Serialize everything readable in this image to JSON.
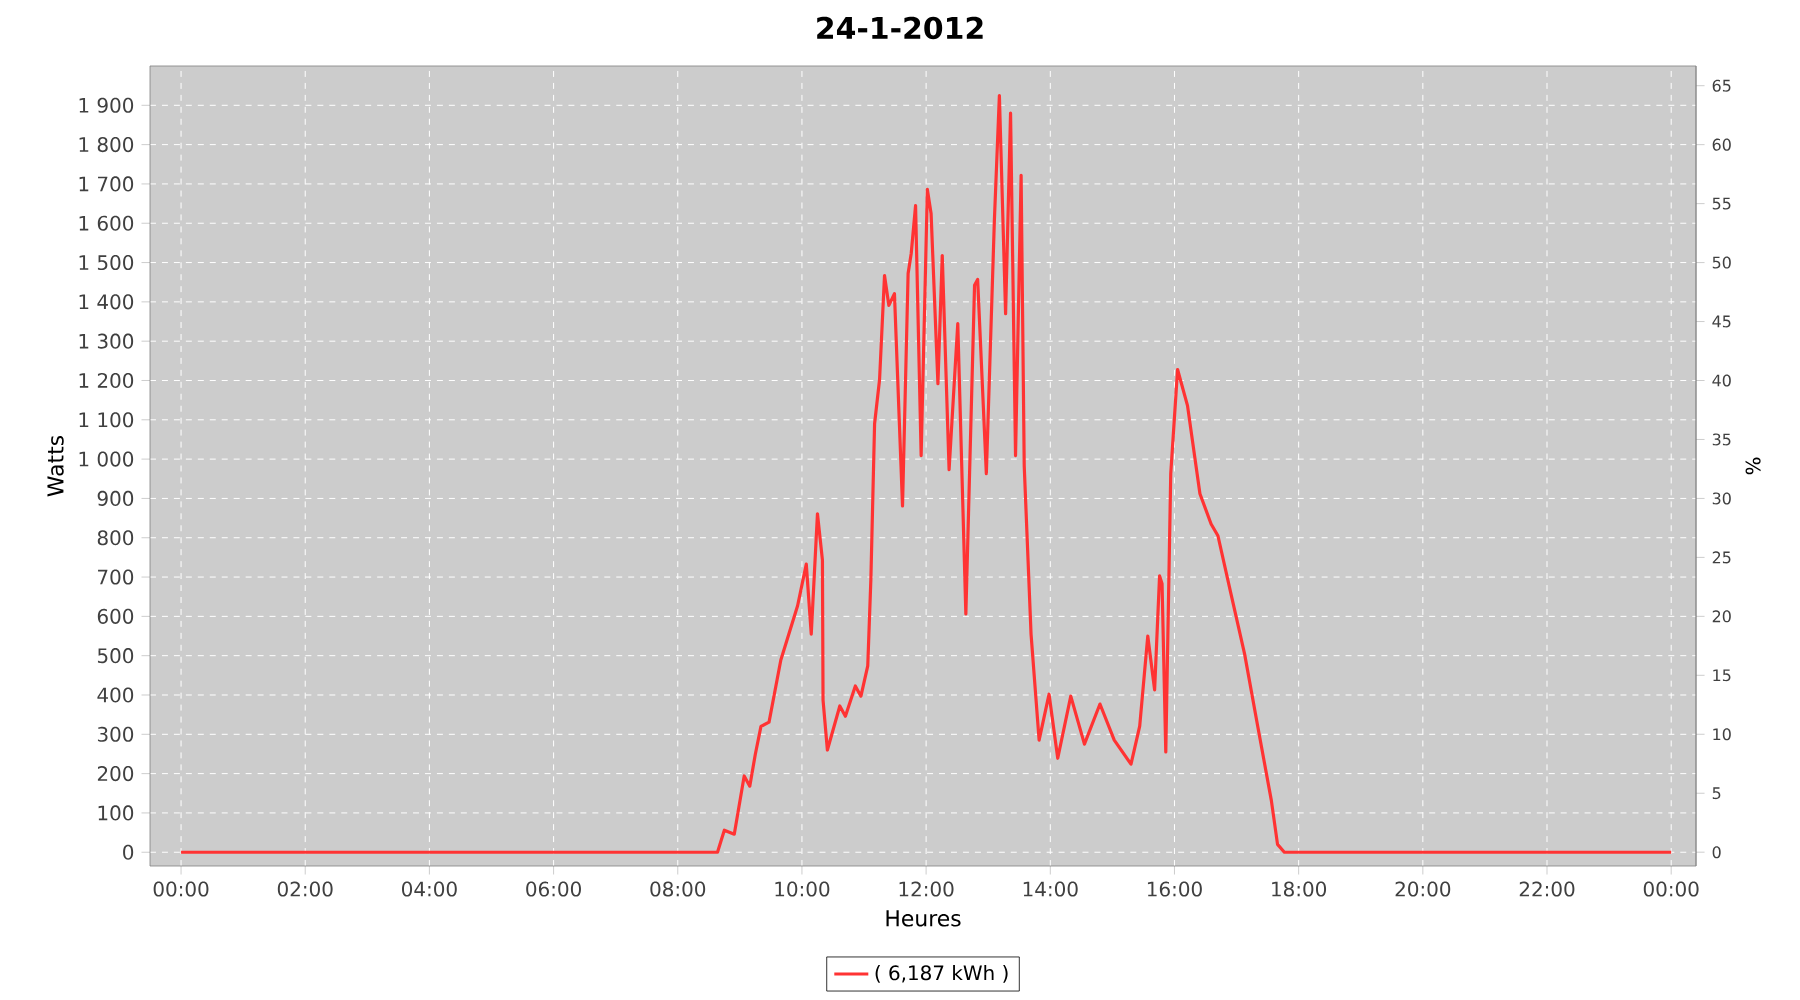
{
  "chart_data": {
    "type": "line",
    "title": "24-1-2012",
    "xlabel": "Heures",
    "ylabel": "Watts",
    "y2label": "%",
    "xlim": [
      -0.5,
      24.4
    ],
    "ylim": [
      -35,
      2000
    ],
    "y2lim": [
      -1.17,
      66.67
    ],
    "xticks": [
      {
        "value": 0,
        "label": "00:00"
      },
      {
        "value": 2,
        "label": "02:00"
      },
      {
        "value": 4,
        "label": "04:00"
      },
      {
        "value": 6,
        "label": "06:00"
      },
      {
        "value": 8,
        "label": "08:00"
      },
      {
        "value": 10,
        "label": "10:00"
      },
      {
        "value": 12,
        "label": "12:00"
      },
      {
        "value": 14,
        "label": "14:00"
      },
      {
        "value": 16,
        "label": "16:00"
      },
      {
        "value": 18,
        "label": "18:00"
      },
      {
        "value": 20,
        "label": "20:00"
      },
      {
        "value": 22,
        "label": "22:00"
      },
      {
        "value": 24,
        "label": "00:00"
      }
    ],
    "yticks": [
      0,
      100,
      200,
      300,
      400,
      500,
      600,
      700,
      800,
      900,
      {
        "value": 1000,
        "label": "1 000"
      },
      {
        "value": 1100,
        "label": "1 100"
      },
      {
        "value": 1200,
        "label": "1 200"
      },
      {
        "value": 1300,
        "label": "1 300"
      },
      {
        "value": 1400,
        "label": "1 400"
      },
      {
        "value": 1500,
        "label": "1 500"
      },
      {
        "value": 1600,
        "label": "1 600"
      },
      {
        "value": 1700,
        "label": "1 700"
      },
      {
        "value": 1800,
        "label": "1 800"
      },
      {
        "value": 1900,
        "label": "1 900"
      }
    ],
    "y2ticks": [
      0,
      5,
      10,
      15,
      20,
      25,
      30,
      35,
      40,
      45,
      50,
      55,
      60,
      65
    ],
    "grid": true,
    "legend": "bottom",
    "marker": "none",
    "line_style": "solid",
    "series": [
      {
        "name": "( 6,187 kWh )",
        "color": "#ff3333",
        "x": [
          0,
          8.64,
          8.75,
          8.91,
          9.07,
          9.16,
          9.25,
          9.34,
          9.47,
          9.66,
          9.93,
          10.07,
          10.15,
          10.25,
          10.33,
          10.34,
          10.41,
          10.61,
          10.7,
          10.86,
          10.95,
          11.06,
          11.11,
          11.17,
          11.25,
          11.33,
          11.4,
          11.49,
          11.62,
          11.71,
          11.76,
          11.83,
          11.92,
          12.02,
          12.08,
          12.19,
          12.26,
          12.37,
          12.51,
          12.64,
          12.78,
          12.83,
          12.97,
          13.1,
          13.18,
          13.28,
          13.36,
          13.44,
          13.53,
          13.58,
          13.69,
          13.82,
          13.98,
          14.12,
          14.33,
          14.55,
          14.8,
          15.03,
          15.3,
          15.44,
          15.57,
          15.68,
          15.76,
          15.8,
          15.86,
          15.94,
          16.05,
          16.21,
          16.41,
          16.59,
          16.7,
          16.91,
          17.13,
          17.34,
          17.56,
          17.66,
          17.77,
          24
        ],
        "values": [
          0,
          0,
          56,
          46,
          194,
          168,
          250,
          320,
          331,
          489,
          627,
          733,
          555,
          861,
          743,
          387,
          260,
          372,
          346,
          423,
          397,
          474,
          693,
          1090,
          1202,
          1467,
          1391,
          1421,
          881,
          1472,
          1523,
          1645,
          1009,
          1686,
          1625,
          1192,
          1518,
          973,
          1345,
          606,
          1442,
          1457,
          963,
          1610,
          1925,
          1370,
          1880,
          1009,
          1722,
          983,
          555,
          285,
          402,
          239,
          397,
          275,
          377,
          285,
          224,
          321,
          550,
          413,
          703,
          683,
          255,
          963,
          1228,
          1136,
          912,
          835,
          805,
          657,
          504,
          321,
          132,
          20,
          0,
          0
        ]
      }
    ]
  }
}
